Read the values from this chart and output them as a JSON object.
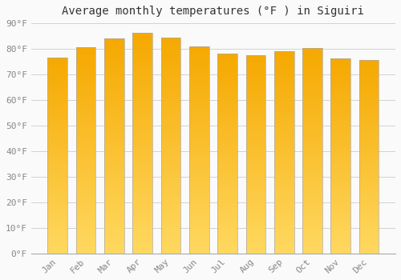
{
  "months": [
    "Jan",
    "Feb",
    "Mar",
    "Apr",
    "May",
    "Jun",
    "Jul",
    "Aug",
    "Sep",
    "Oct",
    "Nov",
    "Dec"
  ],
  "values": [
    76.5,
    80.5,
    84.0,
    86.2,
    84.5,
    81.0,
    78.0,
    77.5,
    79.0,
    80.2,
    76.3,
    75.5
  ],
  "bar_color_top": "#F5A800",
  "bar_color_bottom": "#FFD060",
  "bar_color_mid": "#FFC030",
  "title": "Average monthly temperatures (°F ) in Siguiri",
  "ylim": [
    0,
    90
  ],
  "yticks": [
    0,
    10,
    20,
    30,
    40,
    50,
    60,
    70,
    80,
    90
  ],
  "ytick_labels": [
    "0°F",
    "10°F",
    "20°F",
    "30°F",
    "40°F",
    "50°F",
    "60°F",
    "70°F",
    "80°F",
    "90°F"
  ],
  "background_color": "#FAFAFA",
  "grid_color": "#CCCCCC",
  "title_fontsize": 10,
  "tick_fontsize": 8,
  "bar_width": 0.7,
  "bar_edge_color": "#AAAAAA",
  "bar_edge_width": 0.5
}
